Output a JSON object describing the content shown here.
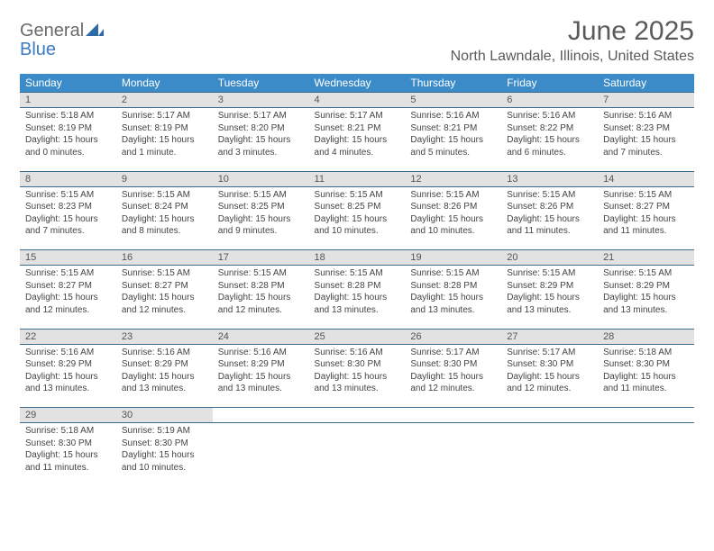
{
  "brand": {
    "text_top": "General",
    "text_bottom": "Blue",
    "top_color": "#6a6a6a",
    "bottom_color": "#3a7cbf",
    "mark_color": "#2f6aa8"
  },
  "header": {
    "title": "June 2025",
    "location": "North Lawndale, Illinois, United States"
  },
  "colors": {
    "header_bg": "#3b8bc9",
    "header_text": "#ffffff",
    "daynum_bg": "#e2e2e2",
    "week_border": "#3b6a8f",
    "body_text": "#444444",
    "title_text": "#5a5a5a"
  },
  "typography": {
    "title_fontsize": 30,
    "location_fontsize": 16,
    "weekday_fontsize": 12,
    "daynum_fontsize": 11,
    "detail_fontsize": 10
  },
  "weekdays": [
    "Sunday",
    "Monday",
    "Tuesday",
    "Wednesday",
    "Thursday",
    "Friday",
    "Saturday"
  ],
  "weeks": [
    {
      "days": [
        {
          "num": "1",
          "sunrise": "Sunrise: 5:18 AM",
          "sunset": "Sunset: 8:19 PM",
          "daylight": "Daylight: 15 hours and 0 minutes."
        },
        {
          "num": "2",
          "sunrise": "Sunrise: 5:17 AM",
          "sunset": "Sunset: 8:19 PM",
          "daylight": "Daylight: 15 hours and 1 minute."
        },
        {
          "num": "3",
          "sunrise": "Sunrise: 5:17 AM",
          "sunset": "Sunset: 8:20 PM",
          "daylight": "Daylight: 15 hours and 3 minutes."
        },
        {
          "num": "4",
          "sunrise": "Sunrise: 5:17 AM",
          "sunset": "Sunset: 8:21 PM",
          "daylight": "Daylight: 15 hours and 4 minutes."
        },
        {
          "num": "5",
          "sunrise": "Sunrise: 5:16 AM",
          "sunset": "Sunset: 8:21 PM",
          "daylight": "Daylight: 15 hours and 5 minutes."
        },
        {
          "num": "6",
          "sunrise": "Sunrise: 5:16 AM",
          "sunset": "Sunset: 8:22 PM",
          "daylight": "Daylight: 15 hours and 6 minutes."
        },
        {
          "num": "7",
          "sunrise": "Sunrise: 5:16 AM",
          "sunset": "Sunset: 8:23 PM",
          "daylight": "Daylight: 15 hours and 7 minutes."
        }
      ]
    },
    {
      "days": [
        {
          "num": "8",
          "sunrise": "Sunrise: 5:15 AM",
          "sunset": "Sunset: 8:23 PM",
          "daylight": "Daylight: 15 hours and 7 minutes."
        },
        {
          "num": "9",
          "sunrise": "Sunrise: 5:15 AM",
          "sunset": "Sunset: 8:24 PM",
          "daylight": "Daylight: 15 hours and 8 minutes."
        },
        {
          "num": "10",
          "sunrise": "Sunrise: 5:15 AM",
          "sunset": "Sunset: 8:25 PM",
          "daylight": "Daylight: 15 hours and 9 minutes."
        },
        {
          "num": "11",
          "sunrise": "Sunrise: 5:15 AM",
          "sunset": "Sunset: 8:25 PM",
          "daylight": "Daylight: 15 hours and 10 minutes."
        },
        {
          "num": "12",
          "sunrise": "Sunrise: 5:15 AM",
          "sunset": "Sunset: 8:26 PM",
          "daylight": "Daylight: 15 hours and 10 minutes."
        },
        {
          "num": "13",
          "sunrise": "Sunrise: 5:15 AM",
          "sunset": "Sunset: 8:26 PM",
          "daylight": "Daylight: 15 hours and 11 minutes."
        },
        {
          "num": "14",
          "sunrise": "Sunrise: 5:15 AM",
          "sunset": "Sunset: 8:27 PM",
          "daylight": "Daylight: 15 hours and 11 minutes."
        }
      ]
    },
    {
      "days": [
        {
          "num": "15",
          "sunrise": "Sunrise: 5:15 AM",
          "sunset": "Sunset: 8:27 PM",
          "daylight": "Daylight: 15 hours and 12 minutes."
        },
        {
          "num": "16",
          "sunrise": "Sunrise: 5:15 AM",
          "sunset": "Sunset: 8:27 PM",
          "daylight": "Daylight: 15 hours and 12 minutes."
        },
        {
          "num": "17",
          "sunrise": "Sunrise: 5:15 AM",
          "sunset": "Sunset: 8:28 PM",
          "daylight": "Daylight: 15 hours and 12 minutes."
        },
        {
          "num": "18",
          "sunrise": "Sunrise: 5:15 AM",
          "sunset": "Sunset: 8:28 PM",
          "daylight": "Daylight: 15 hours and 13 minutes."
        },
        {
          "num": "19",
          "sunrise": "Sunrise: 5:15 AM",
          "sunset": "Sunset: 8:28 PM",
          "daylight": "Daylight: 15 hours and 13 minutes."
        },
        {
          "num": "20",
          "sunrise": "Sunrise: 5:15 AM",
          "sunset": "Sunset: 8:29 PM",
          "daylight": "Daylight: 15 hours and 13 minutes."
        },
        {
          "num": "21",
          "sunrise": "Sunrise: 5:15 AM",
          "sunset": "Sunset: 8:29 PM",
          "daylight": "Daylight: 15 hours and 13 minutes."
        }
      ]
    },
    {
      "days": [
        {
          "num": "22",
          "sunrise": "Sunrise: 5:16 AM",
          "sunset": "Sunset: 8:29 PM",
          "daylight": "Daylight: 15 hours and 13 minutes."
        },
        {
          "num": "23",
          "sunrise": "Sunrise: 5:16 AM",
          "sunset": "Sunset: 8:29 PM",
          "daylight": "Daylight: 15 hours and 13 minutes."
        },
        {
          "num": "24",
          "sunrise": "Sunrise: 5:16 AM",
          "sunset": "Sunset: 8:29 PM",
          "daylight": "Daylight: 15 hours and 13 minutes."
        },
        {
          "num": "25",
          "sunrise": "Sunrise: 5:16 AM",
          "sunset": "Sunset: 8:30 PM",
          "daylight": "Daylight: 15 hours and 13 minutes."
        },
        {
          "num": "26",
          "sunrise": "Sunrise: 5:17 AM",
          "sunset": "Sunset: 8:30 PM",
          "daylight": "Daylight: 15 hours and 12 minutes."
        },
        {
          "num": "27",
          "sunrise": "Sunrise: 5:17 AM",
          "sunset": "Sunset: 8:30 PM",
          "daylight": "Daylight: 15 hours and 12 minutes."
        },
        {
          "num": "28",
          "sunrise": "Sunrise: 5:18 AM",
          "sunset": "Sunset: 8:30 PM",
          "daylight": "Daylight: 15 hours and 11 minutes."
        }
      ]
    },
    {
      "days": [
        {
          "num": "29",
          "sunrise": "Sunrise: 5:18 AM",
          "sunset": "Sunset: 8:30 PM",
          "daylight": "Daylight: 15 hours and 11 minutes."
        },
        {
          "num": "30",
          "sunrise": "Sunrise: 5:19 AM",
          "sunset": "Sunset: 8:30 PM",
          "daylight": "Daylight: 15 hours and 10 minutes."
        },
        null,
        null,
        null,
        null,
        null
      ]
    }
  ]
}
